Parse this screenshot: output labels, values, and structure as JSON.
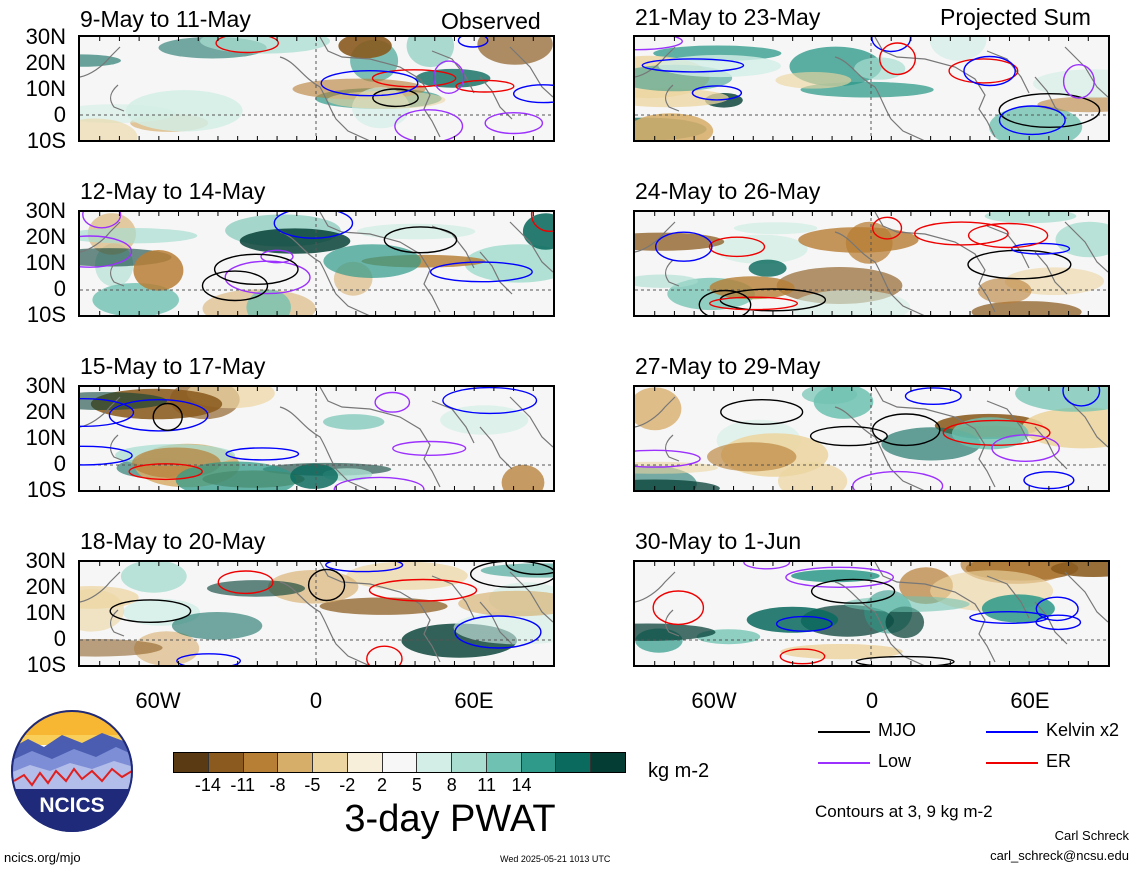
{
  "panels": [
    {
      "title": "9-May to 11-May",
      "kind": "Observed"
    },
    {
      "title": "21-May to 23-May",
      "kind": "Projected Sum"
    },
    {
      "title": "12-May to 14-May",
      "kind": ""
    },
    {
      "title": "24-May to 26-May",
      "kind": ""
    },
    {
      "title": "15-May to 17-May",
      "kind": ""
    },
    {
      "title": "27-May to 29-May",
      "kind": ""
    },
    {
      "title": "18-May to 20-May",
      "kind": ""
    },
    {
      "title": "30-May to 1-Jun",
      "kind": ""
    }
  ],
  "lat_labels": [
    "30N",
    "20N",
    "10N",
    "0",
    "10S"
  ],
  "lon_labels": [
    "60W",
    "0",
    "60E"
  ],
  "colorbar": {
    "ticks": [
      "-14",
      "-11",
      "-8",
      "-5",
      "-2",
      "2",
      "5",
      "8",
      "11",
      "14"
    ],
    "colors": [
      "#5a3a12",
      "#8a5a1e",
      "#b77e35",
      "#d7ad6a",
      "#ecd5a1",
      "#f7efd9",
      "#f7f7f7",
      "#d3eee6",
      "#a9ddd0",
      "#6fc2b1",
      "#2f9a8a",
      "#0b6a5e",
      "#033d33"
    ],
    "units": "kg m-2",
    "title": "3-day PWAT"
  },
  "legend": {
    "items": [
      {
        "label": "MJO",
        "color": "#000000"
      },
      {
        "label": "Kelvin x2",
        "color": "#0000ff"
      },
      {
        "label": "Low",
        "color": "#9b30ff"
      },
      {
        "label": "ER",
        "color": "#ee0000"
      }
    ],
    "contours_note": "Contours at 3, 9 kg m-2"
  },
  "credits": {
    "logo_text": "NCICS",
    "site": "ncics.org/mjo",
    "timestamp": "Wed 2025-05-21 1013 UTC",
    "author": "Carl Schreck",
    "email": "carl_schreck@ncsu.edu"
  }
}
